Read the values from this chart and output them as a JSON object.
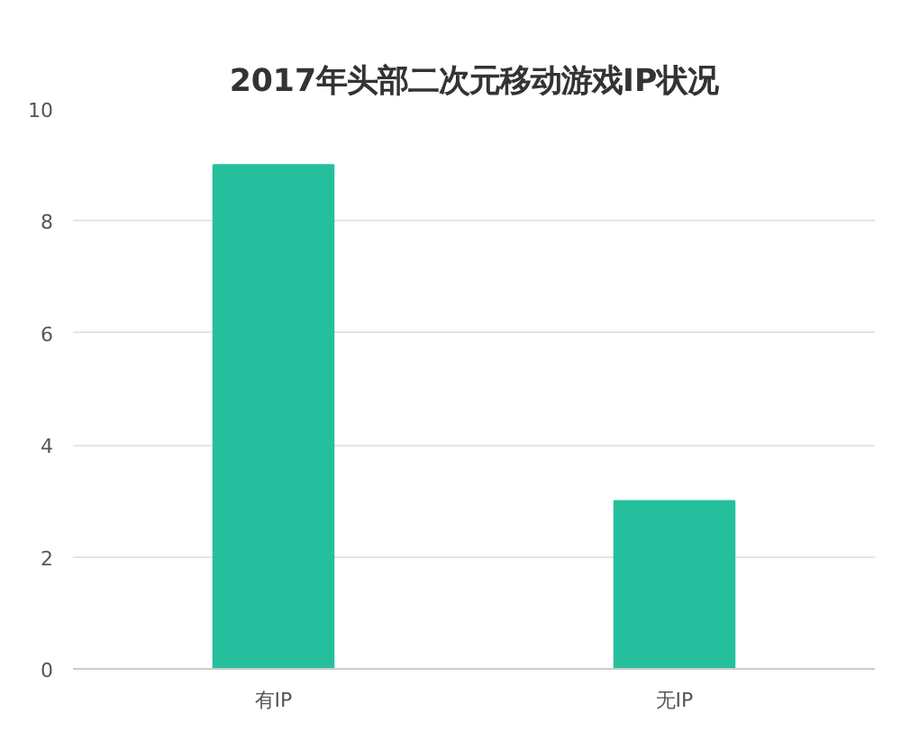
{
  "chart_data": {
    "type": "bar",
    "title": "2017年头部二次元移动游戏IP状况",
    "categories": [
      "有IP",
      "无IP"
    ],
    "values": [
      9,
      3
    ],
    "color": "#26bf9d",
    "ylim": [
      0,
      10
    ],
    "yticks": [
      0,
      2,
      4,
      6,
      8,
      10
    ],
    "grid": "y"
  }
}
